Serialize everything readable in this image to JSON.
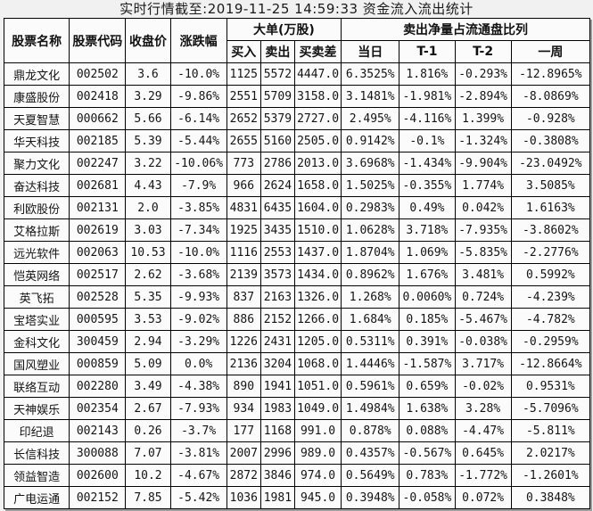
{
  "title": "实时行情截至:2019-11-25 14:59:33 资金流入流出统计",
  "colors": {
    "stock_link_text": "#4d7ca0",
    "body_text": "#141414",
    "table_border": "#000000",
    "page_background": "#f1f1f1",
    "cell_background": "#fbfbfb"
  },
  "table": {
    "headers": {
      "stock_name": "股票名称",
      "stock_code": "股票代码",
      "close_price": "收盘价",
      "change_pct": "涨跌幅",
      "big_orders_group": "大单(万股)",
      "buy": "买入",
      "sell": "卖出",
      "buy_sell_diff": "买卖差",
      "net_sell_ratio_group": "卖出净量占流通盘比列",
      "today": "当日",
      "t_minus_1": "T-1",
      "t_minus_2": "T-2",
      "one_week": "一周"
    },
    "rows": [
      {
        "name": "鼎龙文化",
        "code": "002502",
        "close": "3.6",
        "change": "-10.0%",
        "buy": "1125",
        "sell": "5572",
        "diff": "4447.0",
        "today": "6.3525%",
        "t1": "1.816%",
        "t2": "-0.293%",
        "week": "-12.8965%"
      },
      {
        "name": "康盛股份",
        "code": "002418",
        "close": "3.29",
        "change": "-9.86%",
        "buy": "2551",
        "sell": "5709",
        "diff": "3158.0",
        "today": "3.1481%",
        "t1": "-1.981%",
        "t2": "-2.894%",
        "week": "-8.0869%"
      },
      {
        "name": "天夏智慧",
        "code": "000662",
        "close": "5.66",
        "change": "-6.14%",
        "buy": "2652",
        "sell": "5379",
        "diff": "2727.0",
        "today": "2.495%",
        "t1": "-4.116%",
        "t2": "1.399%",
        "week": "-0.928%"
      },
      {
        "name": "华天科技",
        "code": "002185",
        "close": "5.39",
        "change": "-5.44%",
        "buy": "2655",
        "sell": "5160",
        "diff": "2505.0",
        "today": "0.9142%",
        "t1": "-0.1%",
        "t2": "-1.324%",
        "week": "-0.3808%"
      },
      {
        "name": "聚力文化",
        "code": "002247",
        "close": "3.22",
        "change": "-10.06%",
        "buy": "773",
        "sell": "2786",
        "diff": "2013.0",
        "today": "3.6968%",
        "t1": "-1.434%",
        "t2": "-9.904%",
        "week": "-23.0492%"
      },
      {
        "name": "奋达科技",
        "code": "002681",
        "close": "4.43",
        "change": "-7.9%",
        "buy": "966",
        "sell": "2624",
        "diff": "1658.0",
        "today": "1.5025%",
        "t1": "-0.355%",
        "t2": "1.774%",
        "week": "3.5085%"
      },
      {
        "name": "利欧股份",
        "code": "002131",
        "close": "2.0",
        "change": "-3.85%",
        "buy": "4831",
        "sell": "6435",
        "diff": "1604.0",
        "today": "0.2983%",
        "t1": "0.49%",
        "t2": "0.042%",
        "week": "1.6163%"
      },
      {
        "name": "艾格拉斯",
        "code": "002619",
        "close": "3.03",
        "change": "-7.34%",
        "buy": "1925",
        "sell": "3435",
        "diff": "1510.0",
        "today": "1.0628%",
        "t1": "3.718%",
        "t2": "-7.935%",
        "week": "-3.8602%"
      },
      {
        "name": "远光软件",
        "code": "002063",
        "close": "10.53",
        "change": "-10.0%",
        "buy": "1116",
        "sell": "2553",
        "diff": "1437.0",
        "today": "1.8704%",
        "t1": "1.069%",
        "t2": "-5.835%",
        "week": "-2.2776%"
      },
      {
        "name": "恺英网络",
        "code": "002517",
        "close": "2.62",
        "change": "-3.68%",
        "buy": "2139",
        "sell": "3573",
        "diff": "1434.0",
        "today": "0.8962%",
        "t1": "1.676%",
        "t2": "3.481%",
        "week": "0.5992%"
      },
      {
        "name": "英飞拓",
        "code": "002528",
        "close": "5.35",
        "change": "-9.93%",
        "buy": "837",
        "sell": "2163",
        "diff": "1326.0",
        "today": "1.268%",
        "t1": "0.0060%",
        "t2": "0.724%",
        "week": "-4.239%"
      },
      {
        "name": "宝塔实业",
        "code": "000595",
        "close": "3.53",
        "change": "-9.02%",
        "buy": "886",
        "sell": "2152",
        "diff": "1266.0",
        "today": "1.684%",
        "t1": "0.185%",
        "t2": "-5.467%",
        "week": "-4.782%"
      },
      {
        "name": "金科文化",
        "code": "300459",
        "close": "2.94",
        "change": "-3.29%",
        "buy": "1226",
        "sell": "2431",
        "diff": "1205.0",
        "today": "0.5311%",
        "t1": "0.391%",
        "t2": "-0.038%",
        "week": "-0.2959%"
      },
      {
        "name": "国风塑业",
        "code": "000859",
        "close": "5.09",
        "change": "0.0%",
        "buy": "2136",
        "sell": "3204",
        "diff": "1068.0",
        "today": "1.4446%",
        "t1": "-1.587%",
        "t2": "3.717%",
        "week": "-12.8664%"
      },
      {
        "name": "联络互动",
        "code": "002280",
        "close": "3.49",
        "change": "-4.38%",
        "buy": "890",
        "sell": "1941",
        "diff": "1051.0",
        "today": "0.5961%",
        "t1": "0.659%",
        "t2": "-0.02%",
        "week": "0.9531%"
      },
      {
        "name": "天神娱乐",
        "code": "002354",
        "close": "2.67",
        "change": "-7.93%",
        "buy": "934",
        "sell": "1983",
        "diff": "1049.0",
        "today": "1.4984%",
        "t1": "1.638%",
        "t2": "3.28%",
        "week": "-5.7096%"
      },
      {
        "name": "印纪退",
        "code": "002143",
        "close": "0.26",
        "change": "-3.7%",
        "buy": "177",
        "sell": "1168",
        "diff": "991.0",
        "today": "0.878%",
        "t1": "0.088%",
        "t2": "-4.47%",
        "week": "-5.811%"
      },
      {
        "name": "长信科技",
        "code": "300088",
        "close": "7.07",
        "change": "-3.81%",
        "buy": "2007",
        "sell": "2996",
        "diff": "989.0",
        "today": "0.4357%",
        "t1": "-0.567%",
        "t2": "0.645%",
        "week": "2.0217%"
      },
      {
        "name": "领益智造",
        "code": "002600",
        "close": "10.2",
        "change": "-4.67%",
        "buy": "2872",
        "sell": "3846",
        "diff": "974.0",
        "today": "0.5649%",
        "t1": "0.783%",
        "t2": "-1.772%",
        "week": "-1.2601%"
      },
      {
        "name": "广电运通",
        "code": "002152",
        "close": "7.85",
        "change": "-5.42%",
        "buy": "1036",
        "sell": "1981",
        "diff": "945.0",
        "today": "0.3948%",
        "t1": "-0.058%",
        "t2": "0.072%",
        "week": "0.3848%"
      }
    ]
  }
}
